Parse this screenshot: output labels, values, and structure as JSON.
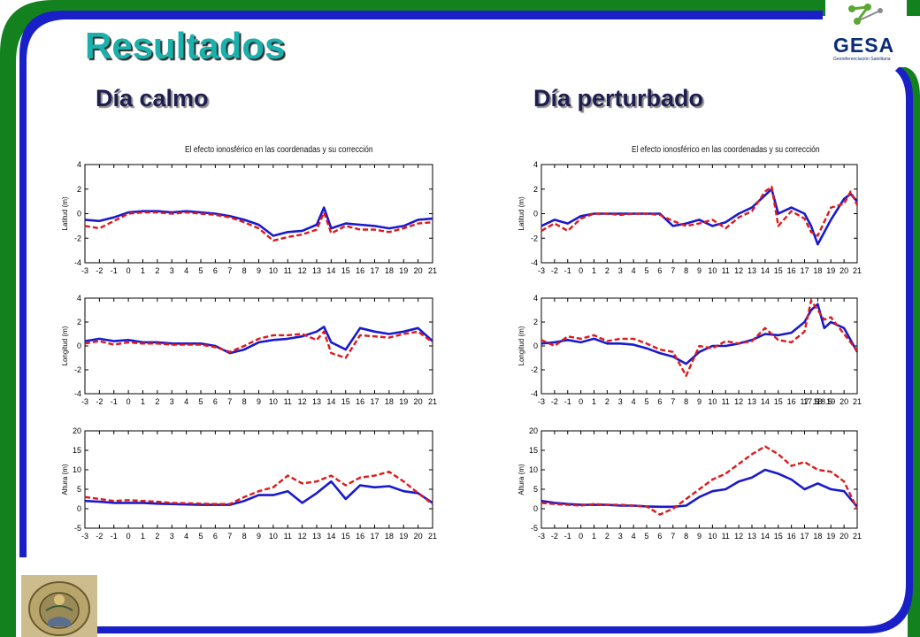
{
  "slide": {
    "title": "Resultados",
    "subtitle_left": "Día calmo",
    "subtitle_right": "Día perturbado",
    "logo_text": "GESA",
    "logo_tagline": "Georeferenciación Satelitaria",
    "seal_icon": "university-seal-icon",
    "logo_icon": "network-nodes-icon",
    "colors": {
      "frame_green": "#14811f",
      "frame_blue": "#1a20c8",
      "title": "#1ab0ab",
      "series_blue": "#1a1acc",
      "series_red": "#dd1a1a"
    }
  },
  "chart_data": [
    {
      "type": "line",
      "id": "calm-lat",
      "title": "El efecto ionosférico en las coordenadas y su corrección",
      "ylabel": "Latitud (m)",
      "xlim": [
        -3,
        21
      ],
      "ylim": [
        -4,
        4
      ],
      "yticks": [
        4,
        2,
        0,
        -2,
        -4
      ],
      "xticks": [
        -3,
        -2,
        -1,
        0,
        1,
        2,
        3,
        4,
        5,
        6,
        7,
        8,
        9,
        10,
        11,
        12,
        13,
        14,
        15,
        16,
        17,
        18,
        19,
        20,
        21
      ],
      "x": [
        -3,
        -2,
        -1,
        0,
        1,
        2,
        3,
        4,
        5,
        6,
        7,
        8,
        9,
        10,
        11,
        12,
        13,
        13.5,
        14,
        15,
        16,
        17,
        18,
        19,
        20,
        21
      ],
      "series": [
        {
          "color": "#1a1acc",
          "values": [
            -0.5,
            -0.6,
            -0.3,
            0.1,
            0.2,
            0.2,
            0.1,
            0.2,
            0.1,
            0,
            -0.2,
            -0.5,
            -0.9,
            -1.8,
            -1.5,
            -1.4,
            -0.9,
            0.5,
            -1.2,
            -0.8,
            -0.9,
            -1.0,
            -1.2,
            -1.0,
            -0.5,
            -0.4
          ]
        },
        {
          "color": "#dd1a1a",
          "values": [
            -1.0,
            -1.2,
            -0.6,
            0,
            0.1,
            0.1,
            0,
            0.1,
            0,
            -0.1,
            -0.3,
            -0.7,
            -1.2,
            -2.2,
            -1.9,
            -1.7,
            -1.3,
            0.1,
            -1.6,
            -1.0,
            -1.3,
            -1.3,
            -1.5,
            -1.2,
            -0.8,
            -0.7
          ]
        }
      ]
    },
    {
      "type": "line",
      "id": "calm-lon",
      "ylabel": "Longitud (m)",
      "xlim": [
        -3,
        21
      ],
      "ylim": [
        -4,
        4
      ],
      "yticks": [
        4,
        2,
        0,
        -2,
        -4
      ],
      "xticks": [
        -3,
        -2,
        -1,
        0,
        1,
        2,
        3,
        4,
        5,
        6,
        7,
        8,
        9,
        10,
        11,
        12,
        13,
        14,
        15,
        16,
        17,
        18,
        19,
        20,
        21
      ],
      "x": [
        -3,
        -2,
        -1,
        0,
        1,
        2,
        3,
        4,
        5,
        6,
        7,
        8,
        9,
        10,
        11,
        12,
        13,
        13.5,
        14,
        15,
        16,
        17,
        18,
        19,
        20,
        21
      ],
      "series": [
        {
          "color": "#1a1acc",
          "values": [
            0.4,
            0.6,
            0.4,
            0.5,
            0.3,
            0.3,
            0.2,
            0.2,
            0.2,
            0,
            -0.6,
            -0.3,
            0.3,
            0.5,
            0.6,
            0.8,
            1.2,
            1.6,
            0.3,
            -0.3,
            1.5,
            1.2,
            1.0,
            1.2,
            1.5,
            0.4
          ]
        },
        {
          "color": "#dd1a1a",
          "values": [
            0.2,
            0.4,
            0.1,
            0.3,
            0.2,
            0.2,
            0.1,
            0.1,
            0.1,
            -0.1,
            -0.5,
            0,
            0.6,
            0.9,
            0.9,
            1.0,
            0.5,
            1.2,
            -0.6,
            -1.0,
            0.9,
            0.8,
            0.7,
            1.0,
            1.2,
            0.3
          ]
        }
      ]
    },
    {
      "type": "line",
      "id": "calm-alt",
      "ylabel": "Altura (m)",
      "xlim": [
        -3,
        21
      ],
      "ylim": [
        -5,
        20
      ],
      "yticks": [
        20,
        15,
        10,
        5,
        0,
        -5
      ],
      "xticks": [
        -3,
        -2,
        -1,
        0,
        1,
        2,
        3,
        4,
        5,
        6,
        7,
        8,
        9,
        10,
        11,
        12,
        13,
        14,
        15,
        16,
        17,
        18,
        19,
        20,
        21
      ],
      "x": [
        -3,
        -2,
        -1,
        0,
        1,
        2,
        3,
        4,
        5,
        6,
        7,
        8,
        9,
        10,
        11,
        12,
        13,
        14,
        15,
        16,
        17,
        18,
        19,
        20,
        21
      ],
      "series": [
        {
          "color": "#1a1acc",
          "values": [
            2,
            1.8,
            1.5,
            1.5,
            1.5,
            1.3,
            1.2,
            1.1,
            1.0,
            1.0,
            1.0,
            2.0,
            3.5,
            3.5,
            4.5,
            1.5,
            4.0,
            7.0,
            2.5,
            6.0,
            5.5,
            5.8,
            4.5,
            4.0,
            1.5
          ]
        },
        {
          "color": "#dd1a1a",
          "values": [
            3,
            2.5,
            2.0,
            2.2,
            2.0,
            1.8,
            1.5,
            1.4,
            1.3,
            1.2,
            1.2,
            3.0,
            4.5,
            5.5,
            8.5,
            6.5,
            7.0,
            8.5,
            6.0,
            8.0,
            8.5,
            9.5,
            7.0,
            4.0,
            1.2
          ]
        }
      ]
    },
    {
      "type": "line",
      "id": "dist-lat",
      "title": "El efecto ionosférico en las coordenadas y su corrección",
      "ylabel": "Latitud (m)",
      "xlim": [
        -3,
        21
      ],
      "ylim": [
        -4,
        4
      ],
      "yticks": [
        4,
        2,
        0,
        -2,
        -4
      ],
      "xticks": [
        -3,
        -2,
        -1,
        0,
        1,
        2,
        3,
        4,
        5,
        6,
        7,
        8,
        9,
        10,
        11,
        12,
        13,
        14,
        15,
        16,
        17,
        18,
        19,
        20,
        21
      ],
      "x": [
        -3,
        -2,
        -1,
        0,
        1,
        2,
        3,
        4,
        5,
        6,
        7,
        8,
        9,
        10,
        11,
        12,
        13,
        14,
        14.5,
        15,
        16,
        17,
        17.5,
        18,
        19,
        20,
        20.5,
        21
      ],
      "series": [
        {
          "color": "#1a1acc",
          "values": [
            -1.0,
            -0.5,
            -0.8,
            -0.2,
            0,
            0,
            0,
            0,
            0,
            0,
            -1.0,
            -0.8,
            -0.5,
            -1.0,
            -0.7,
            0,
            0.5,
            1.5,
            2.0,
            0,
            0.5,
            0,
            -1.0,
            -2.5,
            -0.5,
            1.2,
            1.6,
            1.0
          ]
        },
        {
          "color": "#dd1a1a",
          "values": [
            -1.4,
            -0.8,
            -1.4,
            -0.4,
            0,
            0,
            -0.1,
            0,
            0,
            -0.1,
            -0.6,
            -1.0,
            -0.8,
            -0.5,
            -1.2,
            -0.3,
            0.2,
            1.8,
            2.2,
            -1.0,
            0.2,
            -0.4,
            -1.5,
            -1.8,
            0.5,
            0.8,
            1.8,
            0.7
          ]
        }
      ]
    },
    {
      "type": "line",
      "id": "dist-lon",
      "ylabel": "Longitud (m)",
      "xlim": [
        -3,
        21
      ],
      "ylim": [
        -4,
        4
      ],
      "yticks": [
        4,
        2,
        0,
        -2,
        -4
      ],
      "xticks": [
        -3,
        -2,
        -1,
        0,
        1,
        2,
        3,
        4,
        5,
        6,
        7,
        8,
        9,
        10,
        11,
        12,
        13,
        14,
        15,
        16,
        17,
        17.5,
        18,
        18.5,
        19,
        20,
        21
      ],
      "x": [
        -3,
        -2,
        -1,
        0,
        1,
        2,
        3,
        4,
        5,
        6,
        7,
        8,
        9,
        10,
        11,
        12,
        13,
        14,
        15,
        16,
        17,
        17.5,
        18,
        18.5,
        19,
        20,
        21
      ],
      "series": [
        {
          "color": "#1a1acc",
          "values": [
            0.2,
            0.3,
            0.5,
            0.3,
            0.6,
            0.2,
            0.2,
            0.1,
            -0.2,
            -0.6,
            -0.9,
            -1.5,
            -0.5,
            0,
            0,
            0.2,
            0.5,
            1.0,
            0.9,
            1.1,
            2.0,
            3.0,
            3.5,
            1.5,
            2.0,
            1.5,
            -0.5
          ]
        },
        {
          "color": "#dd1a1a",
          "values": [
            0.5,
            0,
            0.8,
            0.6,
            0.9,
            0.4,
            0.6,
            0.6,
            0.2,
            -0.3,
            -0.5,
            -2.5,
            0,
            -0.2,
            0.4,
            0.2,
            0.4,
            1.5,
            0.5,
            0.3,
            1.2,
            3.8,
            3.0,
            2.2,
            2.4,
            1.0,
            -0.4
          ]
        }
      ]
    },
    {
      "type": "line",
      "id": "dist-alt",
      "ylabel": "Altura (m)",
      "xlim": [
        -3,
        21
      ],
      "ylim": [
        -5,
        20
      ],
      "yticks": [
        20,
        15,
        10,
        5,
        0,
        -5
      ],
      "xticks": [
        -3,
        -2,
        -1,
        0,
        1,
        2,
        3,
        4,
        5,
        6,
        7,
        8,
        9,
        10,
        11,
        12,
        13,
        14,
        15,
        16,
        17,
        18,
        19,
        20,
        21
      ],
      "x": [
        -3,
        -2,
        -1,
        0,
        1,
        2,
        3,
        4,
        5,
        6,
        7,
        8,
        9,
        10,
        11,
        12,
        13,
        14,
        15,
        16,
        17,
        18,
        19,
        20,
        21
      ],
      "series": [
        {
          "color": "#1a1acc",
          "values": [
            2,
            1.5,
            1.2,
            1.0,
            1.0,
            1.0,
            0.8,
            0.8,
            0.6,
            0.5,
            0.5,
            0.8,
            3.0,
            4.5,
            5.0,
            7.0,
            8.0,
            10.0,
            9.0,
            7.5,
            5.0,
            6.5,
            5.0,
            4.5,
            0.5
          ]
        },
        {
          "color": "#dd1a1a",
          "values": [
            1.5,
            1.2,
            1.0,
            0.8,
            1.2,
            1.0,
            1.0,
            0.8,
            0.6,
            -1.5,
            0,
            2.5,
            5.0,
            7.5,
            9.0,
            11.5,
            14.0,
            16.0,
            14.0,
            11.0,
            12.0,
            10.0,
            9.5,
            7.0,
            0
          ]
        }
      ]
    }
  ]
}
